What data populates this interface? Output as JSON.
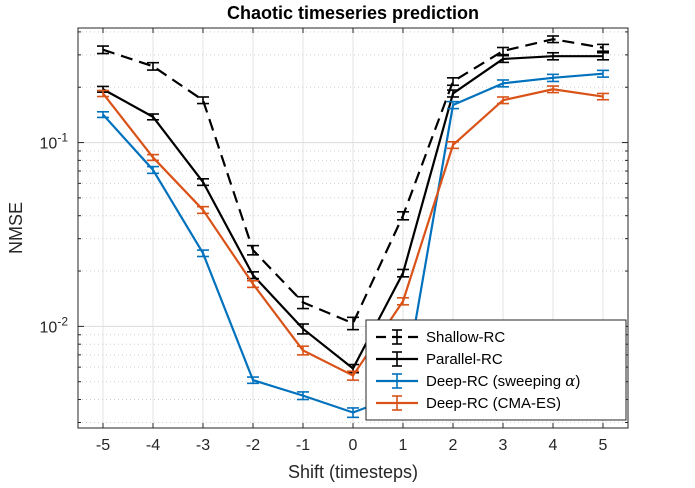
{
  "chart_data": {
    "type": "line",
    "title": "Chaotic timeseries prediction",
    "xlabel": "Shift (timesteps)",
    "ylabel": "NMSE",
    "yscale": "log",
    "xlim": [
      -5.5,
      5.5
    ],
    "ylim": [
      0.0028,
      0.42
    ],
    "grid": true,
    "minor_grid": true,
    "legend_location": "bottom-right",
    "x": [
      -5,
      -4,
      -3,
      -2,
      -1,
      0,
      1,
      2,
      3,
      4,
      5
    ],
    "x_tick_labels": [
      "-5",
      "-4",
      "-3",
      "-2",
      "-1",
      "0",
      "1",
      "2",
      "3",
      "4",
      "5"
    ],
    "y_ticks": [
      {
        "value": 0.01,
        "base": "10",
        "exponent": "-2"
      },
      {
        "value": 0.1,
        "base": "10",
        "exponent": "-1"
      }
    ],
    "series": [
      {
        "name": "Shallow-RC",
        "color": "#000000",
        "line_style": "dashed",
        "values": [
          0.32,
          0.26,
          0.17,
          0.026,
          0.0135,
          0.0104,
          0.04,
          0.215,
          0.315,
          0.365,
          0.328
        ],
        "errors": [
          0.015,
          0.012,
          0.007,
          0.0015,
          0.001,
          0.0008,
          0.002,
          0.01,
          0.014,
          0.015,
          0.014
        ]
      },
      {
        "name": "Parallel-RC",
        "color": "#000000",
        "line_style": "solid",
        "values": [
          0.195,
          0.138,
          0.061,
          0.019,
          0.0097,
          0.0059,
          0.0195,
          0.185,
          0.285,
          0.295,
          0.295
        ],
        "errors": [
          0.007,
          0.005,
          0.0025,
          0.0008,
          0.0006,
          0.0003,
          0.0009,
          0.008,
          0.012,
          0.013,
          0.013
        ]
      },
      {
        "name": "Deep-RC (sweeping α)",
        "legend_label_prefix": "Deep-RC (sweeping ",
        "legend_label_symbol": "α",
        "legend_label_suffix": ")",
        "color": "#0072BD",
        "line_style": "solid",
        "values": [
          0.142,
          0.071,
          0.025,
          0.0051,
          0.0042,
          0.0034,
          0.0043,
          0.16,
          0.21,
          0.225,
          0.237
        ],
        "errors": [
          0.005,
          0.003,
          0.001,
          0.0002,
          0.0002,
          0.0002,
          0.0002,
          0.007,
          0.009,
          0.01,
          0.01
        ]
      },
      {
        "name": "Deep-RC (CMA-ES)",
        "color": "#D95319",
        "line_style": "solid",
        "values": [
          0.185,
          0.083,
          0.043,
          0.017,
          0.0074,
          0.0054,
          0.0137,
          0.097,
          0.17,
          0.195,
          0.178
        ],
        "errors": [
          0.007,
          0.003,
          0.0018,
          0.0007,
          0.0004,
          0.0003,
          0.0006,
          0.004,
          0.007,
          0.008,
          0.007
        ]
      }
    ]
  }
}
